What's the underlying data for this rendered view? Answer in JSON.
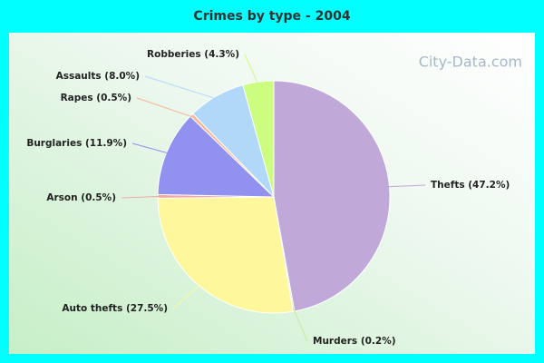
{
  "chart_data": {
    "type": "pie",
    "title": "Crimes by type - 2004",
    "watermark": "City-Data.com",
    "categories": [
      "Thefts (47.2%)",
      "Murders (0.2%)",
      "Auto thefts (27.5%)",
      "Arson (0.5%)",
      "Burglaries (11.9%)",
      "Rapes (0.5%)",
      "Assaults (8.0%)",
      "Robberies (4.3%)"
    ],
    "values": [
      47.2,
      0.2,
      27.5,
      0.5,
      11.9,
      0.5,
      8.0,
      4.3
    ],
    "colors": [
      "#c0a9d9",
      "#cfe6a0",
      "#fff79b",
      "#f2a7a4",
      "#9191f0",
      "#f7b596",
      "#b2d8f9",
      "#ccfd81"
    ]
  }
}
